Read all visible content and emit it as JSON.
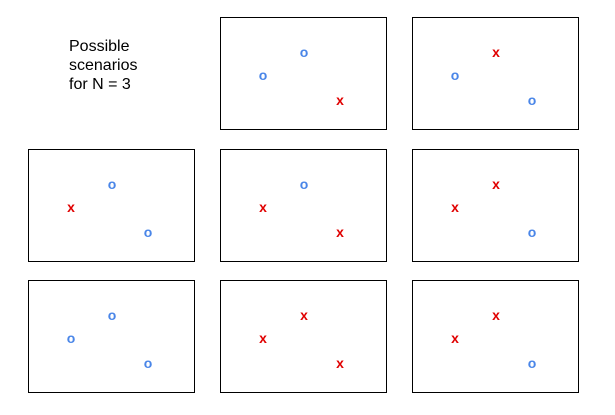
{
  "title_lines": [
    "Possible",
    "scenarios",
    "for N = 3"
  ],
  "colors": {
    "o": "#4a86e8",
    "x": "#e00000",
    "border": "#000000"
  },
  "panels": [
    {
      "marks": [
        "o",
        "o",
        "x"
      ]
    },
    {
      "marks": [
        "o",
        "x",
        "o"
      ]
    },
    {
      "marks": [
        "x",
        "o",
        "o"
      ]
    },
    {
      "marks": [
        "x",
        "o",
        "x"
      ]
    },
    {
      "marks": [
        "x",
        "x",
        "o"
      ]
    },
    {
      "marks": [
        "o",
        "o",
        "o"
      ]
    },
    {
      "marks": [
        "x",
        "x",
        "x"
      ]
    },
    {
      "marks": [
        "x",
        "x",
        "o"
      ]
    }
  ]
}
